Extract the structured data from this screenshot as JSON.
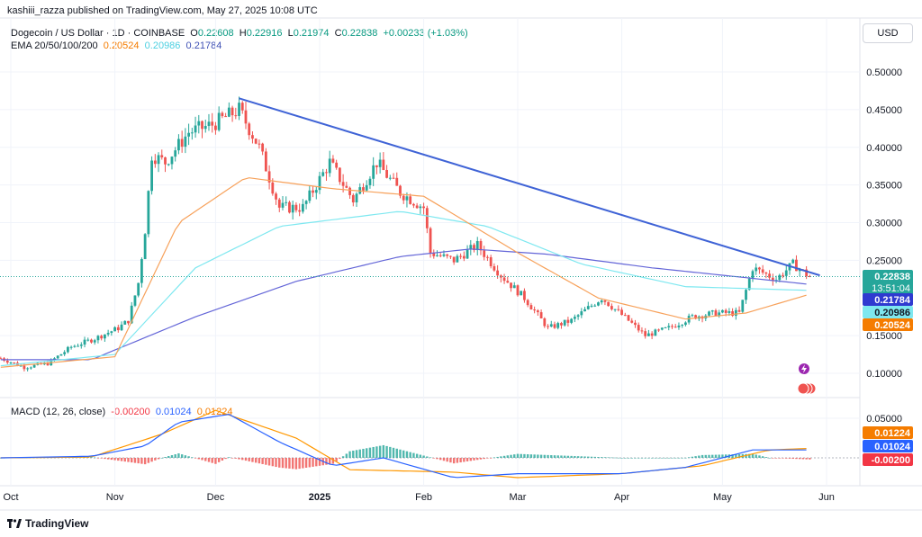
{
  "header": {
    "published": "kashiii_razza published on TradingView.com, May 27, 2025 10:08 UTC",
    "symbol": "Dogecoin / US Dollar · 1D · COINBASE",
    "ohlc": {
      "o_label": "O",
      "o": "0.22608",
      "h_label": "H",
      "h": "0.22916",
      "l_label": "L",
      "l": "0.21974",
      "c_label": "C",
      "c": "0.22838",
      "change": "+0.00233 (+1.03%)"
    },
    "ema_label": "EMA 20/50/100/200",
    "ema_values": [
      "0.20524",
      "0.20986",
      "0.21784"
    ],
    "macd_label": "MACD (12, 26, close)",
    "macd_values": [
      "-0.00200",
      "0.01024",
      "0.01224"
    ],
    "currency": "USD",
    "footer": "TradingView"
  },
  "colors": {
    "up": "#26a69a",
    "down": "#ef5350",
    "trendline": "#3f63d6",
    "ema_orange": "#f7a15a",
    "ema_cyan": "#7ee8f0",
    "ema_blue": "#6466d8",
    "macd_line": "#2962ff",
    "signal_line": "#ff9800"
  },
  "chart_data": [
    {
      "type": "candlestick",
      "x_ticks": [
        "Oct",
        "Nov",
        "Dec",
        "2025",
        "Feb",
        "Mar",
        "Apr",
        "May",
        "Jun"
      ],
      "y_ticks": [
        "0.50000",
        "0.45000",
        "0.40000",
        "0.35000",
        "0.30000",
        "0.25000",
        "0.15000",
        "0.10000"
      ],
      "ylim": [
        0.07,
        0.52
      ],
      "price_points": [
        [
          "2024-09-28",
          0.12
        ],
        [
          "2024-10-05",
          0.108
        ],
        [
          "2024-10-12",
          0.113
        ],
        [
          "2024-10-19",
          0.135
        ],
        [
          "2024-10-26",
          0.146
        ],
        [
          "2024-11-02",
          0.16
        ],
        [
          "2024-11-05",
          0.17
        ],
        [
          "2024-11-08",
          0.22
        ],
        [
          "2024-11-10",
          0.29
        ],
        [
          "2024-11-12",
          0.39
        ],
        [
          "2024-11-16",
          0.38
        ],
        [
          "2024-11-23",
          0.42
        ],
        [
          "2024-11-30",
          0.43
        ],
        [
          "2024-12-08",
          0.45
        ],
        [
          "2024-12-14",
          0.4
        ],
        [
          "2024-12-20",
          0.32
        ],
        [
          "2024-12-27",
          0.32
        ],
        [
          "2025-01-04",
          0.38
        ],
        [
          "2025-01-11",
          0.33
        ],
        [
          "2025-01-18",
          0.38
        ],
        [
          "2025-01-25",
          0.34
        ],
        [
          "2025-02-01",
          0.32
        ],
        [
          "2025-02-03",
          0.26
        ],
        [
          "2025-02-10",
          0.25
        ],
        [
          "2025-02-17",
          0.27
        ],
        [
          "2025-02-24",
          0.23
        ],
        [
          "2025-03-03",
          0.2
        ],
        [
          "2025-03-10",
          0.16
        ],
        [
          "2025-03-17",
          0.17
        ],
        [
          "2025-03-26",
          0.2
        ],
        [
          "2025-04-03",
          0.17
        ],
        [
          "2025-04-08",
          0.15
        ],
        [
          "2025-04-15",
          0.16
        ],
        [
          "2025-04-22",
          0.175
        ],
        [
          "2025-04-29",
          0.18
        ],
        [
          "2025-05-06",
          0.18
        ],
        [
          "2025-05-10",
          0.24
        ],
        [
          "2025-05-17",
          0.225
        ],
        [
          "2025-05-22",
          0.245
        ],
        [
          "2025-05-27",
          0.228
        ]
      ],
      "trendline": [
        [
          "2024-12-08",
          0.465
        ],
        [
          "2025-05-30",
          0.23
        ]
      ],
      "ema_20": [
        [
          "2024-09-28",
          0.108
        ],
        [
          "2024-11-01",
          0.122
        ],
        [
          "2024-11-20",
          0.3
        ],
        [
          "2024-12-10",
          0.36
        ],
        [
          "2025-01-05",
          0.345
        ],
        [
          "2025-02-01",
          0.335
        ],
        [
          "2025-03-01",
          0.26
        ],
        [
          "2025-03-25",
          0.2
        ],
        [
          "2025-04-20",
          0.172
        ],
        [
          "2025-05-08",
          0.18
        ],
        [
          "2025-05-27",
          0.205
        ]
      ],
      "ema_50": [
        [
          "2024-09-28",
          0.11
        ],
        [
          "2024-11-01",
          0.125
        ],
        [
          "2024-11-25",
          0.24
        ],
        [
          "2024-12-20",
          0.295
        ],
        [
          "2025-01-25",
          0.315
        ],
        [
          "2025-02-20",
          0.295
        ],
        [
          "2025-03-20",
          0.245
        ],
        [
          "2025-04-20",
          0.215
        ],
        [
          "2025-05-27",
          0.21
        ]
      ],
      "ema_200": [
        [
          "2024-09-28",
          0.118
        ],
        [
          "2024-10-25",
          0.118
        ],
        [
          "2024-11-25",
          0.175
        ],
        [
          "2024-12-25",
          0.222
        ],
        [
          "2025-01-25",
          0.255
        ],
        [
          "2025-02-15",
          0.265
        ],
        [
          "2025-03-10",
          0.258
        ],
        [
          "2025-04-10",
          0.24
        ],
        [
          "2025-05-27",
          0.218
        ]
      ],
      "price_labels": [
        {
          "value": "0.22838",
          "sub": "13:51:04",
          "color": "#26a69a"
        },
        {
          "value": "0.21784",
          "color": "#2f3ad0"
        },
        {
          "value": "0.20986",
          "color": "#7ee8f0"
        },
        {
          "value": "0.20524",
          "color": "#f57c00"
        }
      ]
    },
    {
      "type": "bar",
      "name": "MACD (12, 26, close)",
      "y_ticks": [
        "0.05000"
      ],
      "ylim": [
        -0.04,
        0.065
      ],
      "macd": [
        [
          "2024-09-28",
          0.0
        ],
        [
          "2024-10-25",
          0.002
        ],
        [
          "2024-11-10",
          0.015
        ],
        [
          "2024-11-20",
          0.045
        ],
        [
          "2024-12-05",
          0.055
        ],
        [
          "2024-12-20",
          0.02
        ],
        [
          "2025-01-05",
          -0.01
        ],
        [
          "2025-01-20",
          0.0
        ],
        [
          "2025-02-10",
          -0.025
        ],
        [
          "2025-03-01",
          -0.02
        ],
        [
          "2025-04-01",
          -0.02
        ],
        [
          "2025-04-20",
          -0.012
        ],
        [
          "2025-05-10",
          0.01
        ],
        [
          "2025-05-27",
          0.01
        ]
      ],
      "signal": [
        [
          "2024-09-28",
          0.0
        ],
        [
          "2024-10-25",
          0.001
        ],
        [
          "2024-11-15",
          0.03
        ],
        [
          "2024-12-01",
          0.06
        ],
        [
          "2024-12-25",
          0.025
        ],
        [
          "2025-01-10",
          -0.015
        ],
        [
          "2025-02-10",
          -0.018
        ],
        [
          "2025-03-01",
          -0.025
        ],
        [
          "2025-04-01",
          -0.02
        ],
        [
          "2025-04-25",
          -0.01
        ],
        [
          "2025-05-15",
          0.01
        ],
        [
          "2025-05-27",
          0.012
        ]
      ],
      "labels": [
        {
          "value": "0.01224",
          "color": "#f57c00"
        },
        {
          "value": "0.01024",
          "color": "#2962ff"
        },
        {
          "value": "-0.00200",
          "color": "#f23645"
        }
      ]
    }
  ]
}
